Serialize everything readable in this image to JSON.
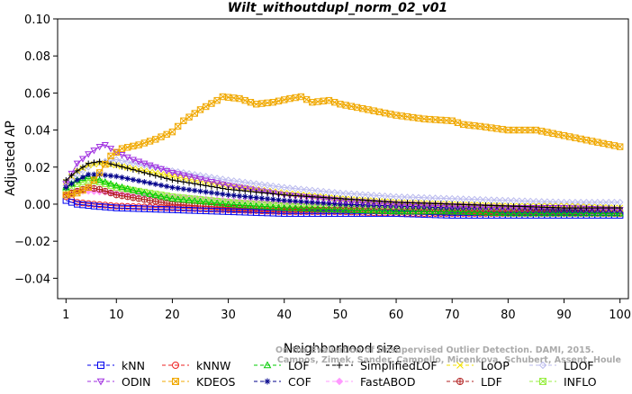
{
  "chart_data": {
    "type": "line",
    "title": "Wilt_withoutdupl_norm_02_v01",
    "xlabel": "Neighborhood size",
    "ylabel": "Adjusted AP",
    "xlim": [
      1,
      100
    ],
    "ylim": [
      -0.05,
      0.1
    ],
    "x_ticks": [
      1,
      10,
      20,
      30,
      40,
      50,
      60,
      70,
      80,
      90,
      100
    ],
    "y_ticks": [
      -0.04,
      -0.02,
      0.0,
      0.02,
      0.04,
      0.06,
      0.08,
      0.1
    ],
    "x_tick_labels": [
      "1",
      "10",
      "20",
      "30",
      "40",
      "50",
      "60",
      "70",
      "80",
      "90",
      "100"
    ],
    "y_tick_labels": [
      "−0.04",
      "−0.02",
      "0.00",
      "0.02",
      "0.04",
      "0.06",
      "0.08",
      "0.10"
    ],
    "grid": false,
    "legend_position": "bottom",
    "watermark": "Campos, Zimek, Sander, Campello, Micenkova, Schubert, Assent, Houle",
    "watermark_line1": "On the Evaluation of Unsupervised Outlier Detection. DAMI, 2015.",
    "series": [
      {
        "name": "kNN",
        "color": "#0000ee",
        "marker": "square",
        "points": [
          [
            1,
            0.002
          ],
          [
            3,
            0.0
          ],
          [
            6,
            -0.001
          ],
          [
            10,
            -0.002
          ],
          [
            20,
            -0.003
          ],
          [
            30,
            -0.004
          ],
          [
            40,
            -0.005
          ],
          [
            50,
            -0.005
          ],
          [
            60,
            -0.005
          ],
          [
            70,
            -0.006
          ],
          [
            80,
            -0.006
          ],
          [
            90,
            -0.006
          ],
          [
            100,
            -0.006
          ]
        ]
      },
      {
        "name": "kNNW",
        "color": "#ee2222",
        "marker": "circle",
        "points": [
          [
            1,
            0.004
          ],
          [
            3,
            0.001
          ],
          [
            6,
            0.0
          ],
          [
            10,
            -0.001
          ],
          [
            20,
            -0.002
          ],
          [
            30,
            -0.003
          ],
          [
            40,
            -0.004
          ],
          [
            50,
            -0.004
          ],
          [
            60,
            -0.005
          ],
          [
            70,
            -0.005
          ],
          [
            80,
            -0.005
          ],
          [
            90,
            -0.005
          ],
          [
            100,
            -0.005
          ]
        ]
      },
      {
        "name": "LOF",
        "color": "#00cc00",
        "marker": "triangle-up",
        "points": [
          [
            1,
            0.009
          ],
          [
            3,
            0.013
          ],
          [
            5,
            0.015
          ],
          [
            7,
            0.013
          ],
          [
            10,
            0.01
          ],
          [
            15,
            0.006
          ],
          [
            20,
            0.003
          ],
          [
            30,
            0.0
          ],
          [
            40,
            -0.002
          ],
          [
            50,
            -0.003
          ],
          [
            60,
            -0.004
          ],
          [
            70,
            -0.004
          ],
          [
            80,
            -0.005
          ],
          [
            90,
            -0.005
          ],
          [
            100,
            -0.005
          ]
        ]
      },
      {
        "name": "SimplifiedLOF",
        "color": "#000000",
        "marker": "plus",
        "points": [
          [
            1,
            0.013
          ],
          [
            3,
            0.018
          ],
          [
            5,
            0.022
          ],
          [
            7,
            0.023
          ],
          [
            10,
            0.021
          ],
          [
            15,
            0.017
          ],
          [
            20,
            0.013
          ],
          [
            30,
            0.008
          ],
          [
            40,
            0.005
          ],
          [
            50,
            0.003
          ],
          [
            60,
            0.001
          ],
          [
            70,
            0.0
          ],
          [
            80,
            -0.001
          ],
          [
            90,
            -0.002
          ],
          [
            100,
            -0.002
          ]
        ]
      },
      {
        "name": "LoOP",
        "color": "#f2e000",
        "marker": "x",
        "points": [
          [
            1,
            0.012
          ],
          [
            3,
            0.018
          ],
          [
            5,
            0.021
          ],
          [
            7,
            0.022
          ],
          [
            10,
            0.021
          ],
          [
            15,
            0.018
          ],
          [
            20,
            0.015
          ],
          [
            30,
            0.01
          ],
          [
            40,
            0.006
          ],
          [
            50,
            0.003
          ],
          [
            60,
            0.001
          ],
          [
            70,
            0.0
          ],
          [
            80,
            -0.001
          ],
          [
            90,
            -0.001
          ],
          [
            100,
            -0.002
          ]
        ]
      },
      {
        "name": "LDOF",
        "color": "#bbbbee",
        "marker": "diamond",
        "points": [
          [
            1,
            0.01
          ],
          [
            3,
            0.016
          ],
          [
            6,
            0.022
          ],
          [
            10,
            0.024
          ],
          [
            15,
            0.021
          ],
          [
            20,
            0.018
          ],
          [
            30,
            0.013
          ],
          [
            40,
            0.009
          ],
          [
            50,
            0.006
          ],
          [
            60,
            0.004
          ],
          [
            70,
            0.003
          ],
          [
            80,
            0.002
          ],
          [
            90,
            0.001
          ],
          [
            100,
            0.001
          ]
        ]
      },
      {
        "name": "ODIN",
        "color": "#a030e0",
        "marker": "triangle-down",
        "points": [
          [
            1,
            0.011
          ],
          [
            3,
            0.022
          ],
          [
            5,
            0.027
          ],
          [
            7,
            0.031
          ],
          [
            8,
            0.032
          ],
          [
            10,
            0.028
          ],
          [
            13,
            0.024
          ],
          [
            16,
            0.021
          ],
          [
            20,
            0.017
          ],
          [
            30,
            0.01
          ],
          [
            40,
            0.005
          ],
          [
            50,
            0.002
          ],
          [
            60,
            0.0
          ],
          [
            70,
            -0.001
          ],
          [
            80,
            -0.002
          ],
          [
            90,
            -0.002
          ],
          [
            100,
            -0.003
          ]
        ]
      },
      {
        "name": "KDEOS",
        "color": "#f0a800",
        "marker": "square-x",
        "points": [
          [
            1,
            0.005
          ],
          [
            3,
            0.006
          ],
          [
            5,
            0.009
          ],
          [
            7,
            0.017
          ],
          [
            9,
            0.026
          ],
          [
            11,
            0.03
          ],
          [
            14,
            0.032
          ],
          [
            17,
            0.035
          ],
          [
            20,
            0.039
          ],
          [
            22,
            0.045
          ],
          [
            25,
            0.051
          ],
          [
            28,
            0.056
          ],
          [
            29,
            0.058
          ],
          [
            32,
            0.057
          ],
          [
            35,
            0.054
          ],
          [
            38,
            0.055
          ],
          [
            41,
            0.057
          ],
          [
            43,
            0.058
          ],
          [
            45,
            0.055
          ],
          [
            48,
            0.056
          ],
          [
            50,
            0.054
          ],
          [
            55,
            0.051
          ],
          [
            60,
            0.048
          ],
          [
            65,
            0.046
          ],
          [
            70,
            0.045
          ],
          [
            72,
            0.043
          ],
          [
            75,
            0.042
          ],
          [
            80,
            0.04
          ],
          [
            85,
            0.04
          ],
          [
            90,
            0.037
          ],
          [
            95,
            0.034
          ],
          [
            100,
            0.031
          ]
        ]
      },
      {
        "name": "COF",
        "color": "#00008b",
        "marker": "asterisk",
        "points": [
          [
            1,
            0.009
          ],
          [
            3,
            0.013
          ],
          [
            5,
            0.016
          ],
          [
            7,
            0.016
          ],
          [
            10,
            0.015
          ],
          [
            15,
            0.012
          ],
          [
            20,
            0.009
          ],
          [
            30,
            0.005
          ],
          [
            40,
            0.002
          ],
          [
            50,
            0.0
          ],
          [
            60,
            -0.001
          ],
          [
            70,
            -0.002
          ],
          [
            80,
            -0.002
          ],
          [
            90,
            -0.003
          ],
          [
            100,
            -0.003
          ]
        ]
      },
      {
        "name": "FastABOD",
        "color": "#ff99ff",
        "marker": "diamond-filled",
        "points": [
          [
            1,
            0.006
          ],
          [
            3,
            0.007
          ],
          [
            5,
            0.007
          ],
          [
            10,
            0.006
          ],
          [
            20,
            0.004
          ],
          [
            30,
            0.002
          ],
          [
            40,
            0.001
          ],
          [
            50,
            0.0
          ],
          [
            60,
            -0.001
          ],
          [
            70,
            -0.002
          ],
          [
            80,
            -0.002
          ],
          [
            90,
            -0.003
          ],
          [
            100,
            -0.003
          ]
        ]
      },
      {
        "name": "LDF",
        "color": "#b22222",
        "marker": "circle-plus",
        "points": [
          [
            1,
            0.005
          ],
          [
            3,
            0.007
          ],
          [
            5,
            0.009
          ],
          [
            7,
            0.008
          ],
          [
            10,
            0.005
          ],
          [
            20,
            0.0
          ],
          [
            30,
            -0.002
          ],
          [
            40,
            -0.003
          ],
          [
            50,
            -0.003
          ],
          [
            60,
            -0.004
          ],
          [
            70,
            -0.004
          ],
          [
            80,
            -0.004
          ],
          [
            90,
            -0.004
          ],
          [
            100,
            -0.005
          ]
        ]
      },
      {
        "name": "INFLO",
        "color": "#99ee44",
        "marker": "square-x",
        "points": [
          [
            1,
            0.007
          ],
          [
            3,
            0.011
          ],
          [
            5,
            0.013
          ],
          [
            7,
            0.012
          ],
          [
            10,
            0.009
          ],
          [
            20,
            0.004
          ],
          [
            30,
            0.001
          ],
          [
            40,
            -0.001
          ],
          [
            50,
            -0.002
          ],
          [
            60,
            -0.003
          ],
          [
            70,
            -0.004
          ],
          [
            80,
            -0.004
          ],
          [
            90,
            -0.004
          ],
          [
            100,
            -0.005
          ]
        ]
      }
    ],
    "legend_rows": [
      [
        "kNN",
        "kNNW",
        "LOF",
        "SimplifiedLOF",
        "LoOP",
        "LDOF"
      ],
      [
        "ODIN",
        "KDEOS",
        "COF",
        "FastABOD",
        "LDF",
        "INFLO"
      ]
    ]
  }
}
